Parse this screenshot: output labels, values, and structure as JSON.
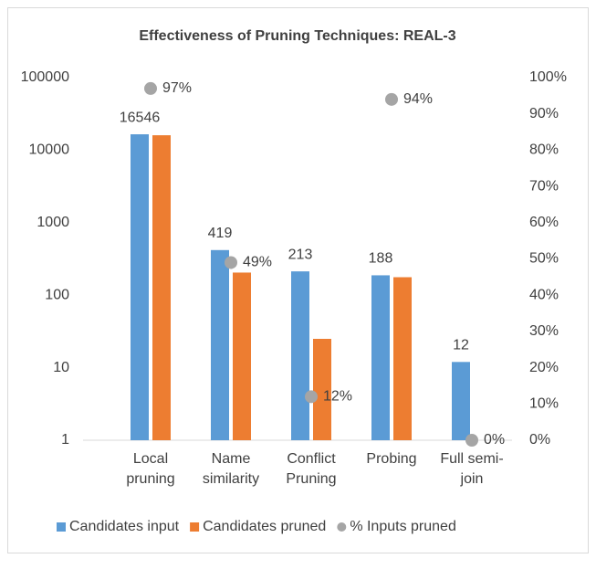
{
  "chart_data": {
    "type": "bar",
    "title": "Effectiveness of Pruning Techniques: REAL-3",
    "categories": [
      "Local pruning",
      "Name similarity",
      "Conflict Pruning",
      "Probing",
      "Full semi-join"
    ],
    "log_scale": true,
    "grid": false,
    "legend": "bottom",
    "ylim": [
      1,
      100000
    ],
    "yticks": [
      1,
      10,
      100,
      1000,
      10000,
      100000
    ],
    "y2lim": [
      0,
      100
    ],
    "y2ticks": [
      {
        "value": 0,
        "label": "0%"
      },
      {
        "value": 10,
        "label": "10%"
      },
      {
        "value": 20,
        "label": "20%"
      },
      {
        "value": 30,
        "label": "30%"
      },
      {
        "value": 40,
        "label": "40%"
      },
      {
        "value": 50,
        "label": "50%"
      },
      {
        "value": 60,
        "label": "60%"
      },
      {
        "value": 70,
        "label": "70%"
      },
      {
        "value": 80,
        "label": "80%"
      },
      {
        "value": 90,
        "label": "90%"
      },
      {
        "value": 100,
        "label": "100%"
      }
    ],
    "series": [
      {
        "name": "Candidates input",
        "color": "#5b9bd5",
        "values": [
          16546,
          419,
          213,
          188,
          12
        ],
        "labels_shown": true
      },
      {
        "name": "Candidates pruned",
        "color": "#ed7d31",
        "values": [
          16050,
          205,
          25,
          177,
          null
        ]
      },
      {
        "name": "% Inputs pruned",
        "color": "#a5a5a5",
        "type": "scatter",
        "axis": "y2",
        "values": [
          97,
          49,
          12,
          94,
          0
        ],
        "value_labels": [
          "97%",
          "49%",
          "12%",
          "94%",
          "0%"
        ]
      }
    ]
  }
}
